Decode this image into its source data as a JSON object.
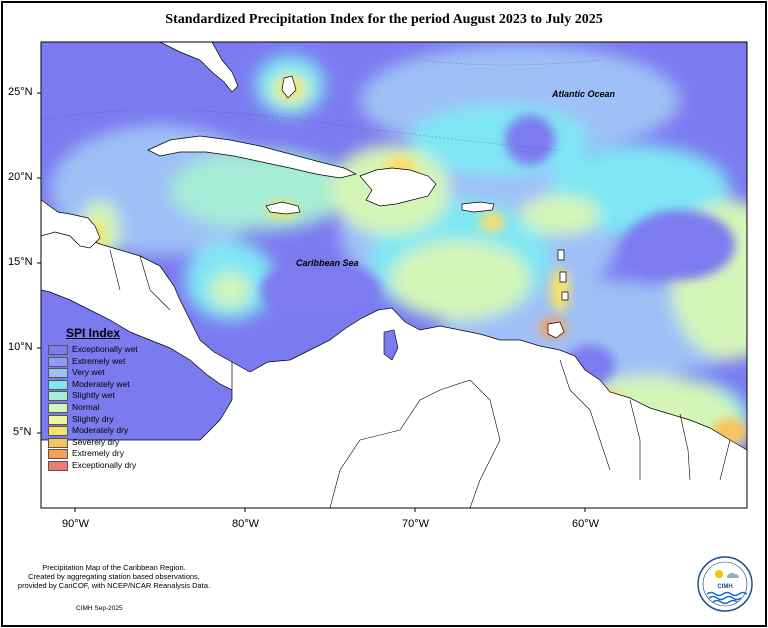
{
  "title": "Standardized Precipitation Index for the period August 2023 to July 2025",
  "map_labels": {
    "atlantic": "Atlantic Ocean",
    "caribbean": "Caribbean Sea"
  },
  "axes": {
    "lat_ticks": [
      "25°N",
      "20°N",
      "15°N",
      "10°N",
      "5°N"
    ],
    "lon_ticks": [
      "90°W",
      "80°W",
      "70°W",
      "60°W"
    ]
  },
  "legend": {
    "title": "SPI Index",
    "items": [
      {
        "label": "Exceptionally wet",
        "color": "#7b7bf0"
      },
      {
        "label": "Extremely wet",
        "color": "#8e9cf4"
      },
      {
        "label": "Very wet",
        "color": "#9fc0f6"
      },
      {
        "label": "Moderately wet",
        "color": "#7fe6f4"
      },
      {
        "label": "Slightly wet",
        "color": "#a6ecd6"
      },
      {
        "label": "Normal",
        "color": "#d4f5b8"
      },
      {
        "label": "Slightly dry",
        "color": "#f0f59a"
      },
      {
        "label": "Moderately dry",
        "color": "#f7e16a"
      },
      {
        "label": "Severely dry",
        "color": "#f7c35e"
      },
      {
        "label": "Extremely dry",
        "color": "#f5a05c"
      },
      {
        "label": "Exceptionally dry",
        "color": "#f07a78"
      }
    ]
  },
  "caption": [
    "Precipitation Map of the Caribbean Region.",
    "Created by aggregating station based observations,",
    "provided by CariCOF, with NCEP/NCAR Reanalysis Data."
  ],
  "credit": "CIMH Sep-2025",
  "logo": {
    "text": "CIMH",
    "icon": "cimh-logo-icon"
  }
}
